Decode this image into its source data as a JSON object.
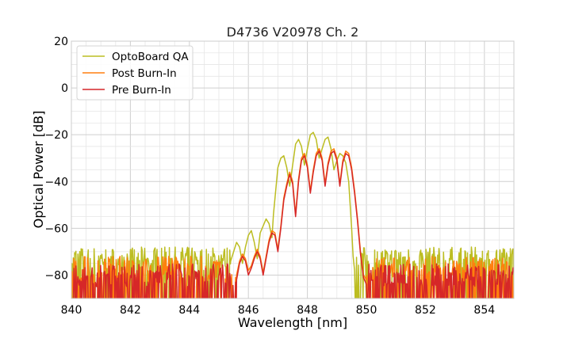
{
  "chart_data": {
    "type": "line",
    "title": "D4736 V20978 Ch. 2",
    "xlabel": "Wavelength [nm]",
    "ylabel": "Optical Power [dB]",
    "xlim": [
      840,
      855
    ],
    "ylim": [
      -90,
      20
    ],
    "xticks": [
      840,
      842,
      844,
      846,
      848,
      850,
      852,
      854
    ],
    "yticks": [
      20,
      0,
      -20,
      -40,
      -60,
      -80
    ],
    "xtick_labels": [
      "840",
      "842",
      "844",
      "846",
      "848",
      "850",
      "852",
      "854"
    ],
    "ytick_labels": [
      "20",
      "0",
      "−20",
      "−40",
      "−60",
      "−80"
    ],
    "grid": true,
    "legend_position": "top-left",
    "series": [
      {
        "name": "OptoBoard QA",
        "color": "#bcbd22",
        "noise_level": -76,
        "band": [
          845.4,
          849.6
        ],
        "points": [
          [
            845.4,
            -74
          ],
          [
            845.5,
            -70
          ],
          [
            845.6,
            -66
          ],
          [
            845.7,
            -68
          ],
          [
            845.8,
            -75
          ],
          [
            845.9,
            -68
          ],
          [
            846.0,
            -63
          ],
          [
            846.1,
            -61
          ],
          [
            846.2,
            -66
          ],
          [
            846.3,
            -73
          ],
          [
            846.4,
            -62
          ],
          [
            846.6,
            -56
          ],
          [
            846.7,
            -58
          ],
          [
            846.8,
            -64
          ],
          [
            846.85,
            -54
          ],
          [
            847.0,
            -34
          ],
          [
            847.1,
            -30
          ],
          [
            847.2,
            -29
          ],
          [
            847.3,
            -34
          ],
          [
            847.4,
            -42
          ],
          [
            847.5,
            -33
          ],
          [
            847.6,
            -24
          ],
          [
            847.7,
            -22
          ],
          [
            847.8,
            -25
          ],
          [
            847.9,
            -33
          ],
          [
            848.0,
            -26
          ],
          [
            848.1,
            -20
          ],
          [
            848.2,
            -19
          ],
          [
            848.3,
            -22
          ],
          [
            848.4,
            -30
          ],
          [
            848.5,
            -26
          ],
          [
            848.6,
            -22
          ],
          [
            848.7,
            -21
          ],
          [
            848.8,
            -26
          ],
          [
            848.9,
            -35
          ],
          [
            849.0,
            -31
          ],
          [
            849.1,
            -28
          ],
          [
            849.2,
            -29
          ],
          [
            849.3,
            -32
          ],
          [
            849.4,
            -40
          ],
          [
            849.5,
            -60
          ],
          [
            849.55,
            -72
          ],
          [
            849.6,
            -78
          ]
        ]
      },
      {
        "name": "Post Burn-In",
        "color": "#ff7f0e",
        "noise_level": -80,
        "band": [
          845.6,
          850.0
        ],
        "points": [
          [
            845.6,
            -80
          ],
          [
            845.7,
            -74
          ],
          [
            845.8,
            -71
          ],
          [
            845.9,
            -73
          ],
          [
            846.0,
            -78
          ],
          [
            846.1,
            -76
          ],
          [
            846.2,
            -72
          ],
          [
            846.3,
            -69
          ],
          [
            846.4,
            -72
          ],
          [
            846.5,
            -79
          ],
          [
            846.6,
            -72
          ],
          [
            846.7,
            -65
          ],
          [
            846.8,
            -61
          ],
          [
            846.9,
            -62
          ],
          [
            847.0,
            -69
          ],
          [
            847.1,
            -59
          ],
          [
            847.2,
            -47
          ],
          [
            847.3,
            -41
          ],
          [
            847.4,
            -36
          ],
          [
            847.5,
            -40
          ],
          [
            847.6,
            -54
          ],
          [
            847.7,
            -39
          ],
          [
            847.8,
            -30
          ],
          [
            847.9,
            -28
          ],
          [
            848.0,
            -33
          ],
          [
            848.1,
            -44
          ],
          [
            848.2,
            -35
          ],
          [
            848.3,
            -28
          ],
          [
            848.4,
            -26
          ],
          [
            848.5,
            -30
          ],
          [
            848.6,
            -41
          ],
          [
            848.7,
            -32
          ],
          [
            848.8,
            -27
          ],
          [
            848.9,
            -26
          ],
          [
            849.0,
            -30
          ],
          [
            849.1,
            -41
          ],
          [
            849.2,
            -31
          ],
          [
            849.3,
            -27
          ],
          [
            849.4,
            -28
          ],
          [
            849.5,
            -34
          ],
          [
            849.6,
            -44
          ],
          [
            849.7,
            -56
          ],
          [
            849.8,
            -70
          ],
          [
            849.9,
            -80
          ],
          [
            850.0,
            -82
          ]
        ]
      },
      {
        "name": "Pre Burn-In",
        "color": "#d62728",
        "noise_level": -83,
        "band": [
          845.6,
          850.0
        ],
        "points": [
          [
            845.6,
            -82
          ],
          [
            845.7,
            -75
          ],
          [
            845.8,
            -72
          ],
          [
            845.9,
            -74
          ],
          [
            846.0,
            -80
          ],
          [
            846.1,
            -77
          ],
          [
            846.2,
            -73
          ],
          [
            846.3,
            -70
          ],
          [
            846.4,
            -73
          ],
          [
            846.5,
            -80
          ],
          [
            846.6,
            -73
          ],
          [
            846.7,
            -66
          ],
          [
            846.8,
            -62
          ],
          [
            846.9,
            -63
          ],
          [
            847.0,
            -70
          ],
          [
            847.1,
            -60
          ],
          [
            847.2,
            -48
          ],
          [
            847.3,
            -42
          ],
          [
            847.4,
            -37
          ],
          [
            847.5,
            -41
          ],
          [
            847.6,
            -55
          ],
          [
            847.7,
            -40
          ],
          [
            847.8,
            -31
          ],
          [
            847.9,
            -29
          ],
          [
            848.0,
            -34
          ],
          [
            848.1,
            -45
          ],
          [
            848.2,
            -36
          ],
          [
            848.3,
            -29
          ],
          [
            848.4,
            -27
          ],
          [
            848.5,
            -31
          ],
          [
            848.6,
            -42
          ],
          [
            848.7,
            -33
          ],
          [
            848.8,
            -28
          ],
          [
            848.9,
            -27
          ],
          [
            849.0,
            -31
          ],
          [
            849.1,
            -42
          ],
          [
            849.2,
            -32
          ],
          [
            849.3,
            -28
          ],
          [
            849.4,
            -29
          ],
          [
            849.5,
            -35
          ],
          [
            849.6,
            -45
          ],
          [
            849.7,
            -57
          ],
          [
            849.8,
            -71
          ],
          [
            849.9,
            -81
          ],
          [
            850.0,
            -84
          ]
        ]
      }
    ]
  }
}
